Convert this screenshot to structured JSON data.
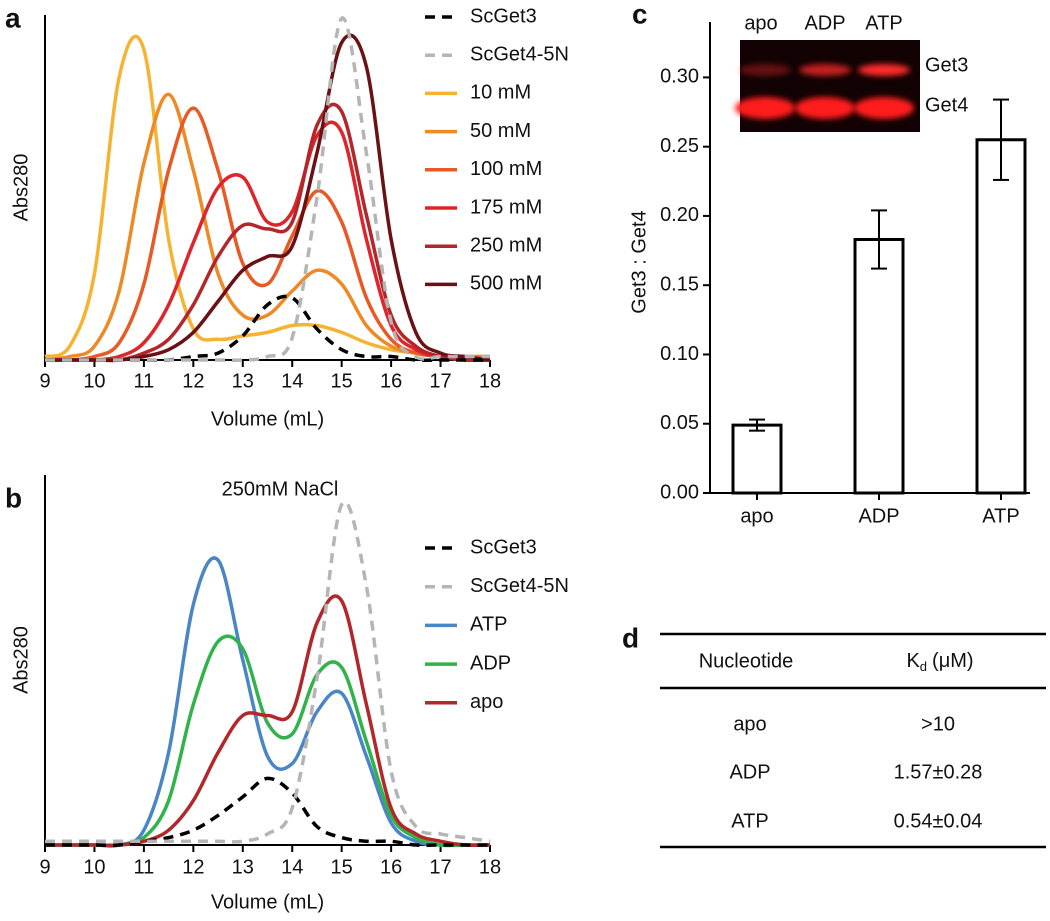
{
  "chart_data": [
    {
      "type": "line",
      "panel": "a",
      "ylabel": "Abs280",
      "xlabel": "Volume (mL)",
      "x": [
        9,
        9.5,
        10,
        10.5,
        11,
        11.5,
        12,
        12.5,
        13,
        13.5,
        14,
        14.5,
        15,
        15.5,
        16,
        16.5,
        17,
        17.5,
        18
      ],
      "xlim": [
        9,
        18
      ],
      "xticks": [
        9,
        10,
        11,
        12,
        13,
        14,
        15,
        16,
        17,
        18
      ],
      "ylim": [
        0,
        1
      ],
      "series": [
        {
          "name": "ScGet3",
          "color": "#000000",
          "dash": true,
          "values": [
            0,
            0,
            0,
            0,
            0,
            0,
            0.01,
            0.02,
            0.07,
            0.16,
            0.18,
            0.09,
            0.03,
            0.01,
            0.01,
            0,
            0,
            0,
            0
          ]
        },
        {
          "name": "ScGet4-5N",
          "color": "#b5b5b5",
          "dash": true,
          "values": [
            0,
            0,
            0,
            0,
            0,
            0,
            0,
            0,
            0,
            0.01,
            0.065,
            0.47,
            0.99,
            0.6,
            0.11,
            0.01,
            0.01,
            0.01,
            0.01
          ]
        },
        {
          "name": "10 mM",
          "color": "#f6b333",
          "values": [
            0.01,
            0.04,
            0.25,
            0.82,
            0.9,
            0.35,
            0.09,
            0.06,
            0.07,
            0.08,
            0.1,
            0.1,
            0.08,
            0.05,
            0.03,
            0.02,
            0.01,
            0.01,
            0.01
          ]
        },
        {
          "name": "50 mM",
          "color": "#ee8a25",
          "values": [
            0,
            0.01,
            0.04,
            0.2,
            0.57,
            0.77,
            0.55,
            0.25,
            0.13,
            0.13,
            0.2,
            0.26,
            0.22,
            0.1,
            0.04,
            0.02,
            0.01,
            0.01,
            0.01
          ]
        },
        {
          "name": "100 mM",
          "color": "#e85a24",
          "values": [
            0,
            0,
            0.01,
            0.05,
            0.22,
            0.55,
            0.73,
            0.55,
            0.28,
            0.22,
            0.36,
            0.49,
            0.4,
            0.18,
            0.06,
            0.02,
            0.01,
            0,
            0
          ]
        },
        {
          "name": "175 mM",
          "color": "#e0242b",
          "values": [
            0,
            0,
            0,
            0.01,
            0.05,
            0.16,
            0.34,
            0.5,
            0.53,
            0.4,
            0.43,
            0.65,
            0.66,
            0.35,
            0.1,
            0.03,
            0.01,
            0,
            0
          ]
        },
        {
          "name": "250 mM",
          "color": "#b3262a",
          "values": [
            0,
            0,
            0,
            0,
            0.02,
            0.06,
            0.16,
            0.3,
            0.39,
            0.38,
            0.4,
            0.68,
            0.72,
            0.42,
            0.13,
            0.04,
            0.01,
            0,
            0
          ]
        },
        {
          "name": "500 mM",
          "color": "#6b1014",
          "values": [
            0,
            0,
            0,
            0,
            0.01,
            0.03,
            0.08,
            0.17,
            0.26,
            0.3,
            0.33,
            0.6,
            0.92,
            0.85,
            0.35,
            0.08,
            0.02,
            0.01,
            0
          ]
        }
      ]
    },
    {
      "type": "line",
      "panel": "b",
      "title": "250mM NaCl",
      "ylabel": "Abs280",
      "xlabel": "Volume (mL)",
      "x": [
        9,
        9.5,
        10,
        10.5,
        11,
        11.5,
        12,
        12.5,
        13,
        13.5,
        14,
        14.5,
        15,
        15.5,
        16,
        16.5,
        17,
        17.5,
        18
      ],
      "xlim": [
        9,
        18
      ],
      "xticks": [
        9,
        10,
        11,
        12,
        13,
        14,
        15,
        16,
        17,
        18
      ],
      "ylim": [
        0,
        1
      ],
      "series": [
        {
          "name": "ScGet3",
          "color": "#000000",
          "dash": true,
          "values": [
            0,
            0,
            0,
            0,
            0.01,
            0.02,
            0.04,
            0.08,
            0.13,
            0.18,
            0.14,
            0.05,
            0.02,
            0.01,
            0.01,
            0,
            0,
            0,
            0
          ]
        },
        {
          "name": "ScGet4-5N",
          "color": "#b5b5b5",
          "dash": true,
          "values": [
            0.01,
            0.01,
            0.01,
            0.01,
            0.01,
            0.01,
            0.01,
            0.01,
            0.01,
            0.03,
            0.1,
            0.45,
            0.92,
            0.7,
            0.2,
            0.05,
            0.03,
            0.02,
            0.01
          ]
        },
        {
          "name": "ATP",
          "color": "#4a86c5",
          "values": [
            0,
            0,
            0,
            0,
            0.04,
            0.25,
            0.65,
            0.77,
            0.5,
            0.24,
            0.22,
            0.36,
            0.41,
            0.24,
            0.06,
            0.01,
            0,
            0,
            0
          ]
        },
        {
          "name": "ADP",
          "color": "#2fb34a",
          "values": [
            0,
            0,
            0,
            0,
            0.02,
            0.12,
            0.38,
            0.55,
            0.53,
            0.33,
            0.3,
            0.46,
            0.48,
            0.28,
            0.08,
            0.02,
            0,
            0,
            0
          ]
        },
        {
          "name": "apo",
          "color": "#b3262a",
          "values": [
            0,
            0,
            0,
            0,
            0.01,
            0.04,
            0.12,
            0.25,
            0.35,
            0.35,
            0.36,
            0.6,
            0.66,
            0.38,
            0.1,
            0.03,
            0.01,
            0,
            0
          ]
        }
      ]
    },
    {
      "type": "bar",
      "panel": "c",
      "ylabel": "Get3 : Get4",
      "categories": [
        "apo",
        "ADP",
        "ATP"
      ],
      "values": [
        0.049,
        0.183,
        0.255
      ],
      "errors": [
        0.004,
        0.021,
        0.029
      ],
      "color": "#ffffff",
      "ylim": [
        0,
        0.34
      ],
      "yticks": [
        {
          "value": 0,
          "label": "0.00"
        },
        0.05,
        {
          "value": 0.1,
          "label": "0.10"
        },
        0.15,
        {
          "value": 0.2,
          "label": "0.20"
        },
        0.25,
        {
          "value": 0.3,
          "label": "0.30"
        }
      ],
      "inset": {
        "lanes": [
          "apo",
          "ADP",
          "ATP"
        ],
        "bands": [
          "Get3",
          "Get4"
        ]
      }
    }
  ],
  "table": {
    "panel": "d",
    "header": {
      "col1": "Nucleotide",
      "col2": [
        "K",
        "d",
        "(μM)"
      ]
    },
    "rows": [
      [
        "apo",
        ">10"
      ],
      [
        "ADP",
        "1.57±0.28"
      ],
      [
        "ATP",
        "0.54±0.04"
      ]
    ]
  }
}
